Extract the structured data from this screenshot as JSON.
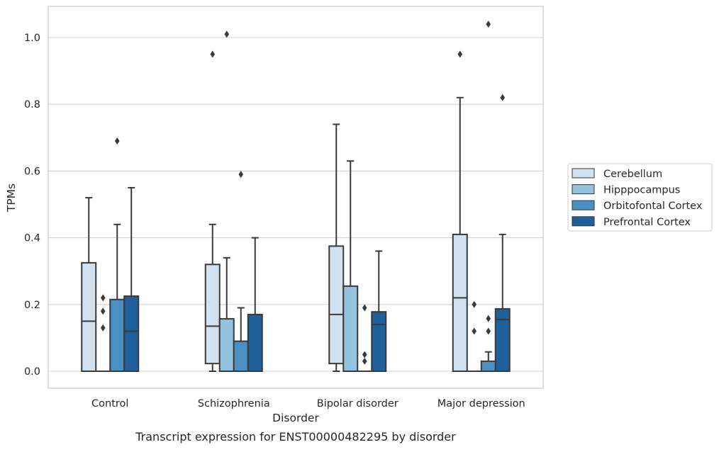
{
  "chart_data": {
    "type": "boxplot",
    "caption": "Transcript expression for ENST00000482295 by disorder",
    "xlabel": "Disorder",
    "ylabel": "TPMs",
    "ylim": [
      -0.05,
      1.09
    ],
    "yticks": [
      0.0,
      0.2,
      0.4,
      0.6,
      0.8,
      1.0
    ],
    "ytick_labels": [
      "0.0",
      "0.2",
      "0.4",
      "0.6",
      "0.8",
      "1.0"
    ],
    "grid": "horizontal",
    "legend_position": "right",
    "categories": [
      "Control",
      "Schizophrenia",
      "Bipolar disorder",
      "Major depression"
    ],
    "series": [
      {
        "name": "Cerebellum",
        "color": "#d1e1f0",
        "boxes": [
          {
            "q1": 0.0,
            "median": 0.15,
            "q3": 0.325,
            "whislo": 0.0,
            "whishi": 0.52,
            "fliers": []
          },
          {
            "q1": 0.023,
            "median": 0.135,
            "q3": 0.32,
            "whislo": 0.0,
            "whishi": 0.44,
            "fliers": [
              0.95
            ]
          },
          {
            "q1": 0.023,
            "median": 0.17,
            "q3": 0.375,
            "whislo": 0.0,
            "whishi": 0.74,
            "fliers": []
          },
          {
            "q1": 0.0,
            "median": 0.22,
            "q3": 0.41,
            "whislo": 0.0,
            "whishi": 0.82,
            "fliers": [
              0.95
            ]
          }
        ]
      },
      {
        "name": "Hipppocampus",
        "color": "#93c3df",
        "boxes": [
          {
            "q1": 0.0,
            "median": 0.0,
            "q3": 0.0,
            "whislo": 0.0,
            "whishi": 0.0,
            "fliers": [
              0.13,
              0.18,
              0.22
            ]
          },
          {
            "q1": 0.0,
            "median": 0.0,
            "q3": 0.157,
            "whislo": 0.0,
            "whishi": 0.34,
            "fliers": [
              1.01
            ]
          },
          {
            "q1": 0.0,
            "median": 0.0,
            "q3": 0.255,
            "whislo": 0.0,
            "whishi": 0.63,
            "fliers": []
          },
          {
            "q1": 0.0,
            "median": 0.0,
            "q3": 0.0,
            "whislo": 0.0,
            "whishi": 0.0,
            "fliers": [
              0.12,
              0.2
            ]
          }
        ]
      },
      {
        "name": "Orbitofontal Cortex",
        "color": "#4a90c2",
        "boxes": [
          {
            "q1": 0.0,
            "median": 0.0,
            "q3": 0.215,
            "whislo": 0.0,
            "whishi": 0.44,
            "fliers": [
              0.69
            ]
          },
          {
            "q1": 0.0,
            "median": 0.0,
            "q3": 0.09,
            "whislo": 0.0,
            "whishi": 0.19,
            "fliers": [
              0.59
            ]
          },
          {
            "q1": 0.0,
            "median": 0.0,
            "q3": 0.0,
            "whislo": 0.0,
            "whishi": 0.0,
            "fliers": [
              0.03,
              0.05,
              0.19
            ]
          },
          {
            "q1": 0.0,
            "median": 0.0,
            "q3": 0.03,
            "whislo": 0.0,
            "whishi": 0.058,
            "fliers": [
              0.12,
              0.158,
              1.04
            ]
          }
        ]
      },
      {
        "name": "Prefrontal Cortex",
        "color": "#1f5f9c",
        "boxes": [
          {
            "q1": 0.0,
            "median": 0.12,
            "q3": 0.225,
            "whislo": 0.0,
            "whishi": 0.55,
            "fliers": []
          },
          {
            "q1": 0.0,
            "median": 0.0,
            "q3": 0.17,
            "whislo": 0.0,
            "whishi": 0.4,
            "fliers": []
          },
          {
            "q1": 0.0,
            "median": 0.14,
            "q3": 0.178,
            "whislo": 0.0,
            "whishi": 0.36,
            "fliers": []
          },
          {
            "q1": 0.0,
            "median": 0.155,
            "q3": 0.187,
            "whislo": 0.0,
            "whishi": 0.41,
            "fliers": [
              0.82
            ]
          }
        ]
      }
    ]
  }
}
